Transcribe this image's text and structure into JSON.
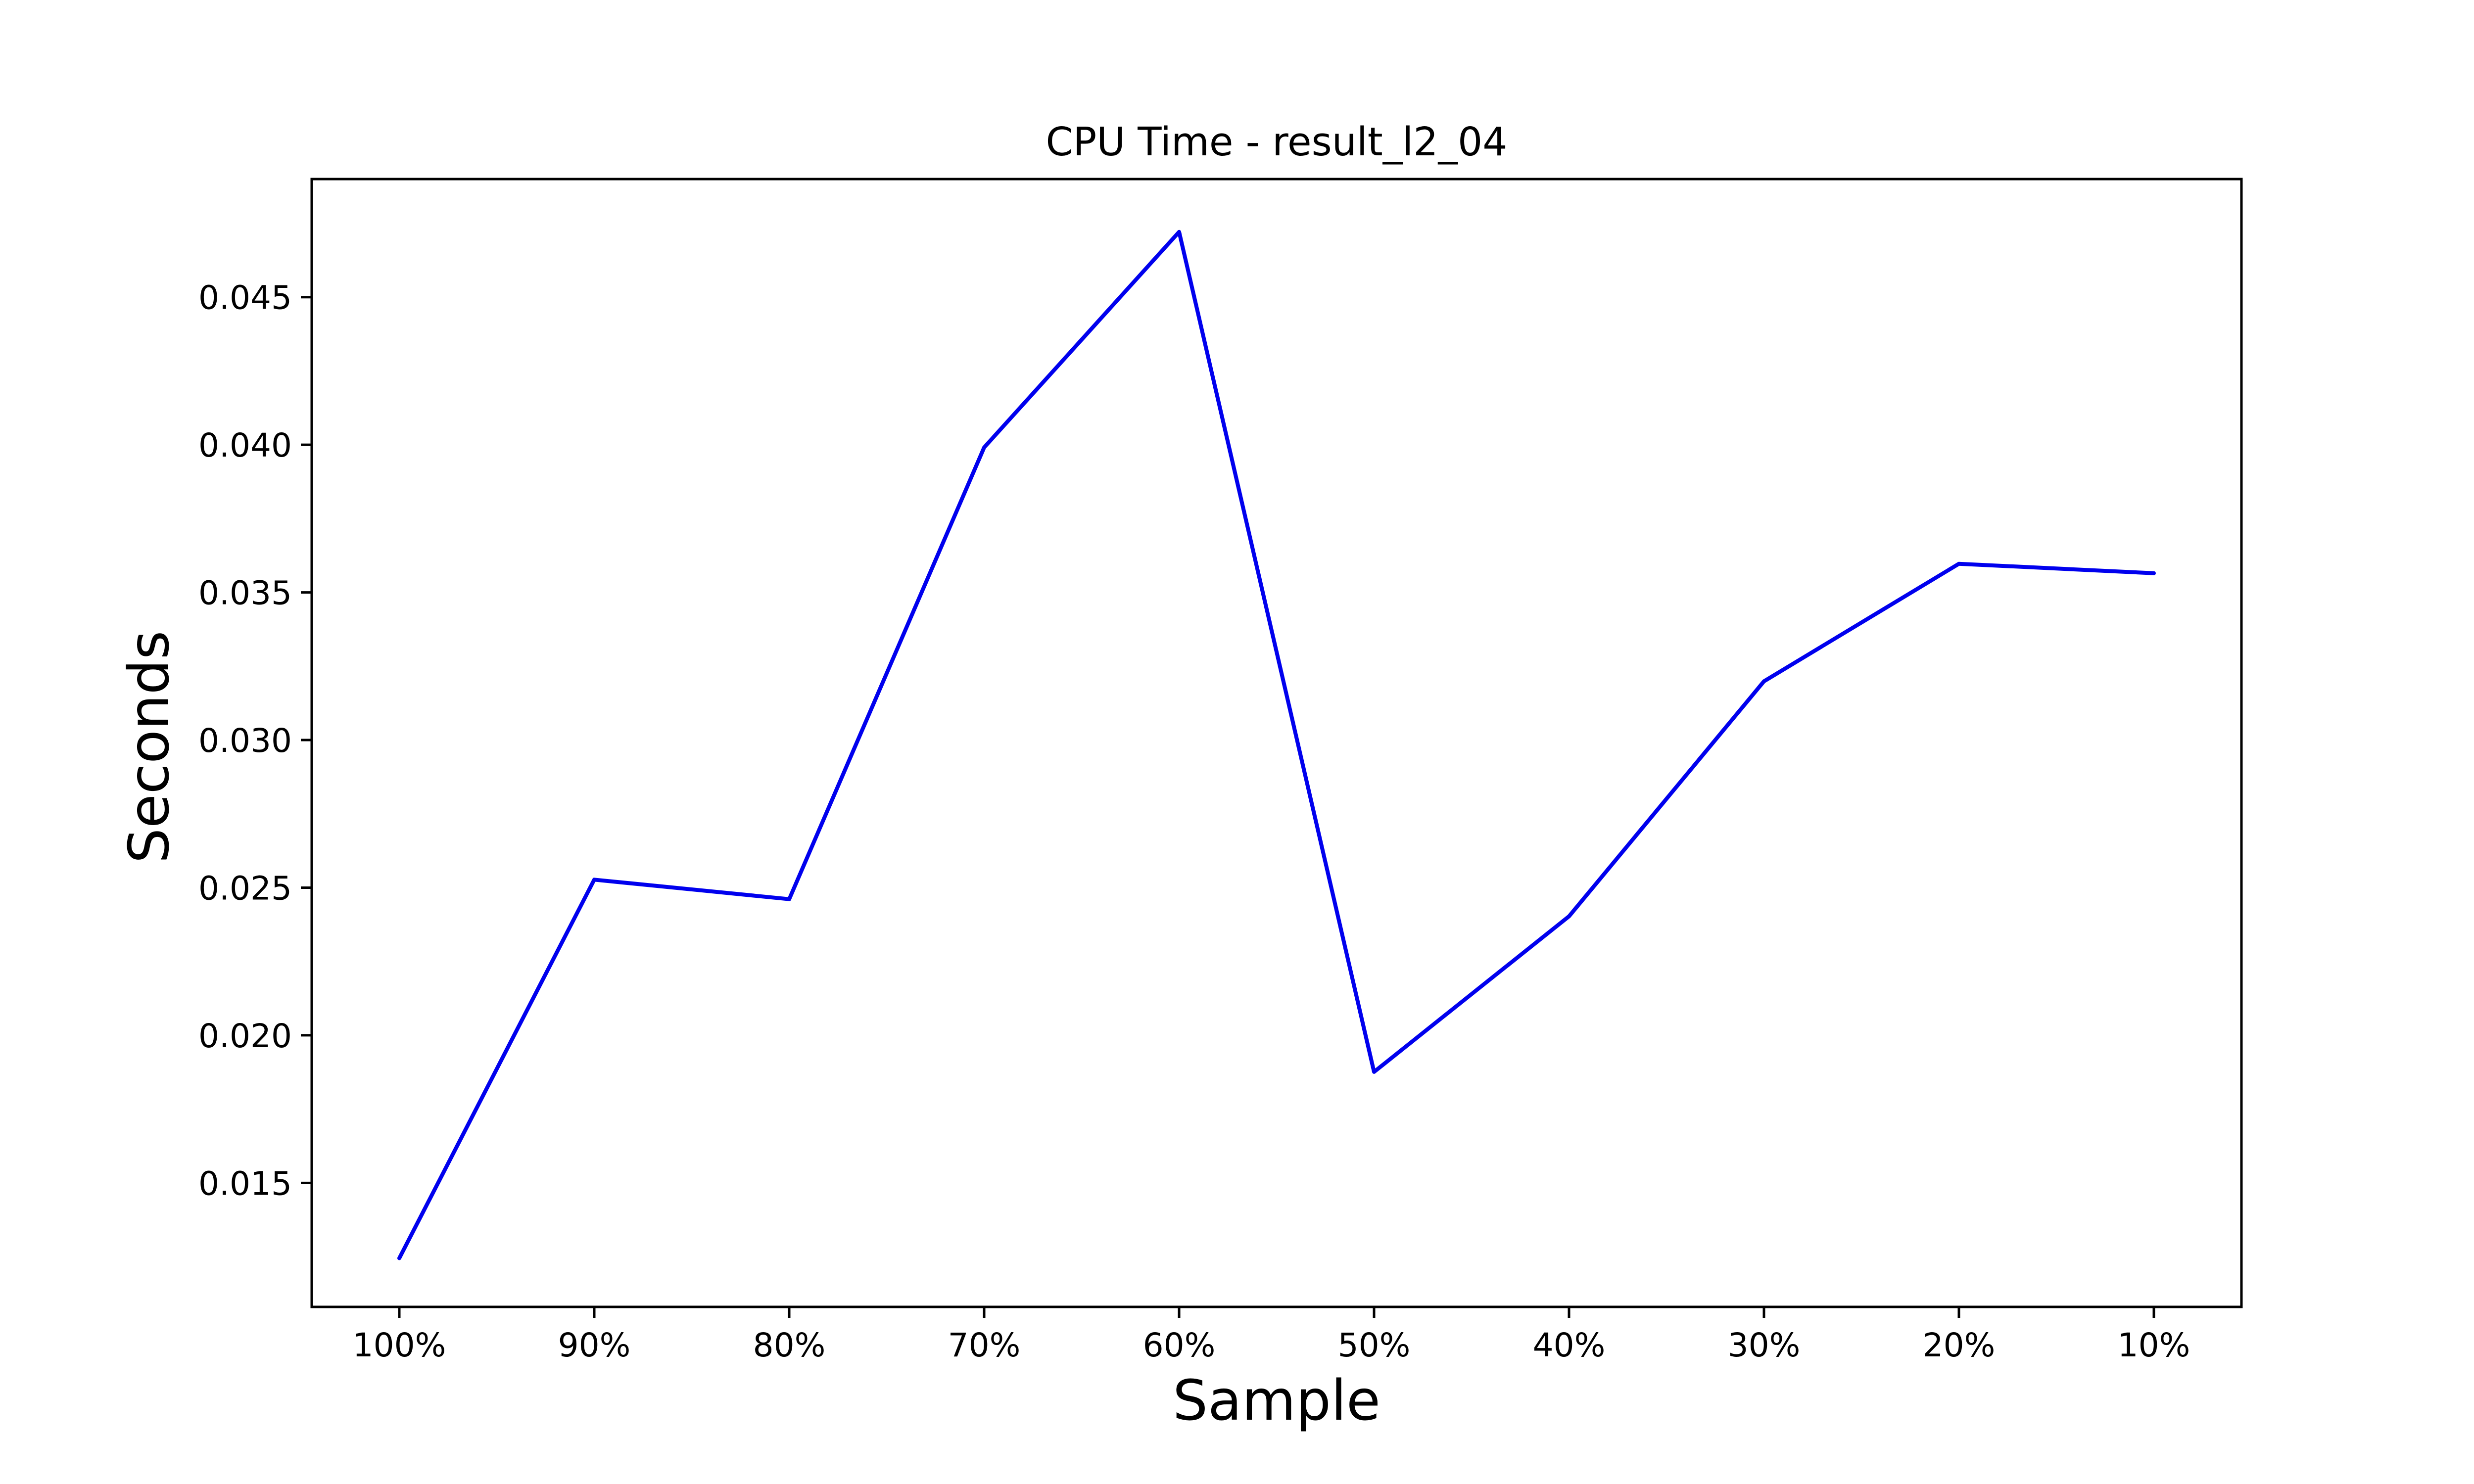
{
  "chart_data": {
    "type": "line",
    "title": "CPU Time - result_l2_04",
    "xlabel": "Sample",
    "ylabel": "Seconds",
    "categories": [
      "100%",
      "90%",
      "80%",
      "70%",
      "60%",
      "50%",
      "40%",
      "30%",
      "20%",
      "10%"
    ],
    "series": [
      {
        "color": "#0000ee",
        "values": [
          0.01245,
          0.02527,
          0.02461,
          0.03991,
          0.04721,
          0.01876,
          0.02403,
          0.03199,
          0.03597,
          0.03565
        ]
      }
    ],
    "ylim": [
      0.0108,
      0.049
    ],
    "yticks": [
      0.015,
      0.02,
      0.025,
      0.03,
      0.035,
      0.04,
      0.045
    ],
    "ytick_labels": [
      "0.015",
      "0.020",
      "0.025",
      "0.030",
      "0.035",
      "0.040",
      "0.045"
    ],
    "grid": false,
    "legend": "none"
  }
}
